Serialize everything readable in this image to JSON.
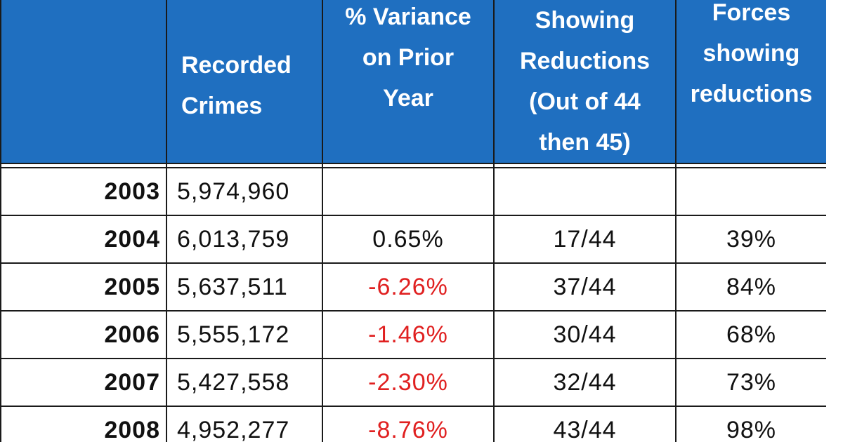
{
  "table": {
    "headers": {
      "crimes": "Recorded\nCrimes",
      "variance": "% Variance\non Prior\nYear",
      "showing": "Showing\nReductions\n(Out of 44\nthen 45)",
      "forces": "Forces\nshowing\nreductions"
    },
    "rows": [
      {
        "year": "2003",
        "crimes": "5,974,960",
        "variance": "",
        "showing": "",
        "forces": "",
        "negative": false
      },
      {
        "year": "2004",
        "crimes": "6,013,759",
        "variance": "0.65%",
        "showing": "17/44",
        "forces": "39%",
        "negative": false
      },
      {
        "year": "2005",
        "crimes": "5,637,511",
        "variance": "-6.26%",
        "showing": "37/44",
        "forces": "84%",
        "negative": true
      },
      {
        "year": "2006",
        "crimes": "5,555,172",
        "variance": "-1.46%",
        "showing": "30/44",
        "forces": "68%",
        "negative": true
      },
      {
        "year": "2007",
        "crimes": "5,427,558",
        "variance": "-2.30%",
        "showing": "32/44",
        "forces": "73%",
        "negative": true
      },
      {
        "year": "2008",
        "crimes": "4,952,277",
        "variance": "-8.76%",
        "showing": "43/44",
        "forces": "98%",
        "negative": true
      }
    ],
    "colors": {
      "header_bg": "#1f6fc0",
      "header_text": "#ffffff",
      "negative_text": "#e02020",
      "grid": "#1a1a1a"
    }
  }
}
